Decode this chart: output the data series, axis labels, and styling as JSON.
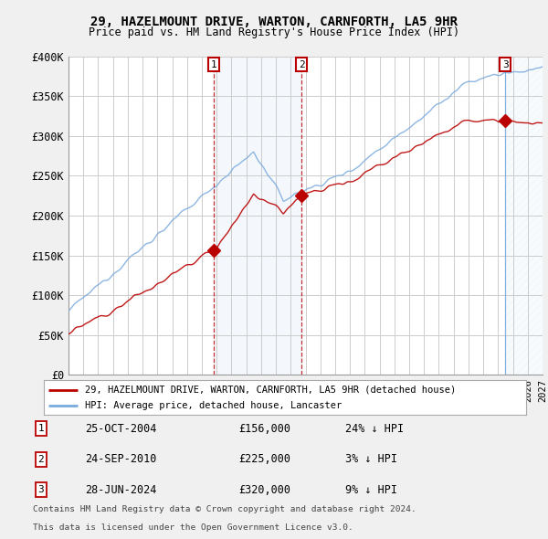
{
  "title": "29, HAZELMOUNT DRIVE, WARTON, CARNFORTH, LA5 9HR",
  "subtitle": "Price paid vs. HM Land Registry's House Price Index (HPI)",
  "ylim": [
    0,
    400000
  ],
  "yticks": [
    0,
    50000,
    100000,
    150000,
    200000,
    250000,
    300000,
    350000,
    400000
  ],
  "ytick_labels": [
    "£0",
    "£50K",
    "£100K",
    "£150K",
    "£200K",
    "£250K",
    "£300K",
    "£350K",
    "£400K"
  ],
  "xlim_start": 1995.0,
  "xlim_end": 2027.0,
  "transactions": [
    {
      "num": 1,
      "date": "25-OCT-2004",
      "price": 156000,
      "year": 2004.82,
      "hpi_diff": "24% ↓ HPI"
    },
    {
      "num": 2,
      "date": "24-SEP-2010",
      "price": 225000,
      "year": 2010.73,
      "hpi_diff": "3% ↓ HPI"
    },
    {
      "num": 3,
      "date": "28-JUN-2024",
      "price": 320000,
      "year": 2024.49,
      "hpi_diff": "9% ↓ HPI"
    }
  ],
  "legend_line1": "29, HAZELMOUNT DRIVE, WARTON, CARNFORTH, LA5 9HR (detached house)",
  "legend_line2": "HPI: Average price, detached house, Lancaster",
  "footer1": "Contains HM Land Registry data © Crown copyright and database right 2024.",
  "footer2": "This data is licensed under the Open Government Licence v3.0.",
  "red_color": "#bb0000",
  "blue_color": "#7aaadd",
  "bg_color": "#f0f0f0",
  "plot_bg": "#ffffff",
  "grid_color": "#cccccc"
}
